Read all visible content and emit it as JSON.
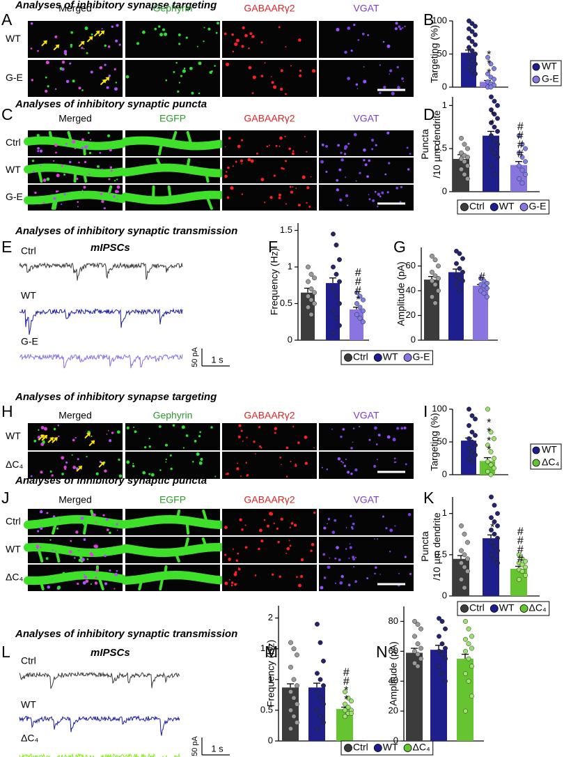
{
  "figure": {
    "titles": [
      "Analyses of inhibitory synapse targeting",
      "Analyses of inhibitory synaptic puncta",
      "Analyses of inhibitory synaptic transmission",
      "Analyses of inhibitory synapse targeting",
      "Analyses of inhibitory synaptic puncta",
      "Analyses of inhibitory synaptic transmission"
    ],
    "image_panels": [
      {
        "letter": "A",
        "columns": [
          "Merged",
          "Gephyrin",
          "GABAARγ2",
          "VGAT"
        ],
        "rows": [
          "WT",
          "G-E"
        ]
      },
      {
        "letter": "C",
        "columns": [
          "Merged",
          "EGFP",
          "GABAARγ2",
          "VGAT"
        ],
        "rows": [
          "Ctrl",
          "WT",
          "G-E"
        ]
      },
      {
        "letter": "H",
        "columns": [
          "Merged",
          "Gephyrin",
          "GABAARγ2",
          "VGAT"
        ],
        "rows": [
          "WT",
          "ΔC₄"
        ]
      },
      {
        "letter": "J",
        "columns": [
          "Merged",
          "EGFP",
          "GABAARγ2",
          "VGAT"
        ],
        "rows": [
          "Ctrl",
          "WT",
          "ΔC₄"
        ]
      }
    ],
    "trace_panels": [
      {
        "letter": "E",
        "title": "mIPSCs",
        "rows": [
          "Ctrl",
          "WT",
          "G-E"
        ],
        "scale_y": "50 pA",
        "scale_x": "1 s"
      },
      {
        "letter": "L",
        "title": "mIPSCs",
        "rows": [
          "Ctrl",
          "WT",
          "ΔC₄"
        ],
        "scale_y": "50 pA",
        "scale_x": "1 s"
      }
    ]
  },
  "chart_data": [
    {
      "type": "bar",
      "letter": "B",
      "ylabel": [
        "Targeting (%)"
      ],
      "categories": [
        "WT",
        "G-E"
      ],
      "values": [
        52,
        8
      ],
      "errors": [
        4,
        2
      ],
      "colors": [
        "#1e1e8c",
        "#8a74e0"
      ],
      "dot_colors": [
        "#23236e",
        "#7f7fe6"
      ],
      "points": [
        [
          100,
          96,
          92,
          88,
          84,
          79,
          74,
          69,
          64,
          60,
          55,
          50,
          45,
          40,
          35,
          30,
          25,
          20
        ],
        [
          45,
          35,
          28,
          20,
          15,
          12,
          8,
          5,
          3,
          0,
          0
        ]
      ],
      "annotations": [
        null,
        "***"
      ],
      "ylim": [
        0,
        100
      ],
      "yticks": [
        0,
        50,
        100
      ],
      "legend": "box"
    },
    {
      "type": "bar",
      "letter": "D",
      "ylabel": [
        "Puncta",
        "/10 µm dendrite"
      ],
      "categories": [
        "Ctrl",
        "WT",
        "G-E"
      ],
      "values": [
        0.38,
        0.65,
        0.31
      ],
      "errors": [
        0.05,
        0.05,
        0.04
      ],
      "colors": [
        "#3c3c3c",
        "#1e1e8c",
        "#8a74e0"
      ],
      "dot_colors": [
        "#9a9a9a",
        "#23236e",
        "#7f7fe6"
      ],
      "points": [
        [
          0.62,
          0.55,
          0.5,
          0.45,
          0.42,
          0.4,
          0.38,
          0.35,
          0.3,
          0.26,
          0.2,
          0.15
        ],
        [
          1.1,
          1.05,
          1.0,
          0.95,
          0.9,
          0.85,
          0.8,
          0.75,
          0.7,
          0.65,
          0.6,
          0.55,
          0.5,
          0.45,
          0.4,
          0.3,
          0.2
        ],
        [
          0.65,
          0.55,
          0.5,
          0.45,
          0.4,
          0.35,
          0.3,
          0.25,
          0.2,
          0.15,
          0.1
        ]
      ],
      "annotations": [
        null,
        "**",
        "####"
      ],
      "ylim": [
        0,
        1.1
      ],
      "yticks": [
        0,
        0.5,
        1
      ],
      "legend": "row"
    },
    {
      "type": "bar",
      "letter": "F",
      "ylabel": [
        "Frequency (Hz)"
      ],
      "categories": [
        "Ctrl",
        "WT",
        "G-E"
      ],
      "values": [
        0.65,
        0.78,
        0.42
      ],
      "errors": [
        0.06,
        0.07,
        0.03
      ],
      "colors": [
        "#3c3c3c",
        "#1e1e8c",
        "#8a74e0"
      ],
      "dot_colors": [
        "#9a9a9a",
        "#23236e",
        "#7f7fe6"
      ],
      "points": [
        [
          1.0,
          0.9,
          0.85,
          0.8,
          0.7,
          0.65,
          0.6,
          0.55,
          0.5,
          0.45,
          0.35
        ],
        [
          1.45,
          1.3,
          1.1,
          1.0,
          0.9,
          0.8,
          0.7,
          0.6,
          0.5,
          0.4,
          0.3,
          0.2,
          0.1
        ],
        [
          0.65,
          0.6,
          0.55,
          0.5,
          0.45,
          0.4,
          0.35,
          0.3,
          0.25
        ]
      ],
      "annotations": [
        null,
        null,
        "###*"
      ],
      "ylim": [
        0,
        1.6
      ],
      "yticks": [
        0,
        0.5,
        1,
        1.5
      ],
      "legend": "row"
    },
    {
      "type": "bar",
      "letter": "G",
      "ylabel": [
        "Amplitude (pA)"
      ],
      "categories": [
        "Ctrl",
        "WT",
        "G-E"
      ],
      "values": [
        49,
        55,
        44
      ],
      "errors": [
        2.5,
        2.5,
        1
      ],
      "colors": [
        "#3c3c3c",
        "#1e1e8c",
        "#8a74e0"
      ],
      "dot_colors": [
        "#9a9a9a",
        "#23236e",
        "#7f7fe6"
      ],
      "points": [
        [
          68,
          65,
          60,
          55,
          52,
          50,
          48,
          45,
          40,
          35,
          30
        ],
        [
          72,
          70,
          66,
          62,
          58,
          55,
          52,
          50,
          48,
          45,
          40
        ],
        [
          50,
          48,
          46,
          45,
          44,
          42,
          40,
          38,
          35
        ]
      ],
      "annotations": [
        null,
        null,
        "#"
      ],
      "ylim": [
        0,
        75
      ],
      "yticks": [
        0,
        20,
        40,
        60
      ]
    },
    {
      "type": "bar",
      "letter": "I",
      "ylabel": [
        "Targeting (%)"
      ],
      "categories": [
        "WT",
        "ΔC₄"
      ],
      "values": [
        52,
        21
      ],
      "errors": [
        4,
        5
      ],
      "colors": [
        "#1e1e8c",
        "#66c430"
      ],
      "dot_colors": [
        "#23236e",
        "#9be36a"
      ],
      "points": [
        [
          100,
          90,
          85,
          75,
          65,
          60,
          55,
          50,
          45,
          40,
          35,
          30,
          25,
          20
        ],
        [
          100,
          65,
          55,
          45,
          35,
          25,
          20,
          15,
          10,
          5,
          0
        ]
      ],
      "annotations": [
        null,
        "****"
      ],
      "ylim": [
        0,
        100
      ],
      "yticks": [
        0,
        50,
        100
      ],
      "legend": "box"
    },
    {
      "type": "bar",
      "letter": "K",
      "ylabel": [
        "Puncta",
        "/10 µm dendrite"
      ],
      "categories": [
        "Ctrl",
        "WT",
        "ΔC₄"
      ],
      "values": [
        0.45,
        0.7,
        0.33
      ],
      "errors": [
        0.04,
        0.04,
        0.03
      ],
      "colors": [
        "#3c3c3c",
        "#1e1e8c",
        "#66c430"
      ],
      "dot_colors": [
        "#9a9a9a",
        "#23236e",
        "#9be36a"
      ],
      "points": [
        [
          0.85,
          0.75,
          0.65,
          0.55,
          0.5,
          0.45,
          0.4,
          0.35,
          0.3,
          0.2,
          0.1
        ],
        [
          1.2,
          1.1,
          1.0,
          0.95,
          0.9,
          0.85,
          0.8,
          0.75,
          0.7,
          0.65,
          0.6,
          0.55,
          0.5,
          0.45,
          0.4
        ],
        [
          0.5,
          0.45,
          0.42,
          0.4,
          0.38,
          0.35,
          0.32,
          0.3,
          0.25,
          0.2
        ]
      ],
      "annotations": [
        null,
        "*",
        "####"
      ],
      "ylim": [
        0,
        1.2
      ],
      "yticks": [
        0,
        0.5,
        1
      ],
      "legend": "row"
    },
    {
      "type": "bar",
      "letter": "M",
      "ylabel": [
        "Frequency (Hz)"
      ],
      "categories": [
        "Ctrl",
        "WT",
        "ΔC₄"
      ],
      "values": [
        0.87,
        0.87,
        0.52
      ],
      "errors": [
        0.06,
        0.07,
        0.03
      ],
      "colors": [
        "#3c3c3c",
        "#1e1e8c",
        "#66c430"
      ],
      "dot_colors": [
        "#9a9a9a",
        "#23236e",
        "#9be36a"
      ],
      "points": [
        [
          1.6,
          1.5,
          1.4,
          1.2,
          1.0,
          0.9,
          0.8,
          0.7,
          0.6,
          0.5,
          0.4,
          0.3,
          0.2
        ],
        [
          1.9,
          1.6,
          1.3,
          1.1,
          1.0,
          0.9,
          0.8,
          0.7,
          0.6,
          0.5,
          0.4,
          0.3,
          0.2
        ],
        [
          0.8,
          0.7,
          0.65,
          0.6,
          0.55,
          0.5,
          0.5,
          0.45,
          0.45,
          0.4
        ]
      ],
      "annotations": [
        null,
        null,
        "##**"
      ],
      "ylim": [
        0,
        2.2
      ],
      "yticks": [
        0,
        0.5,
        1,
        1.5,
        2
      ],
      "legend": "row"
    },
    {
      "type": "bar",
      "letter": "N",
      "ylabel": [
        "Amplitude (pA)"
      ],
      "categories": [
        "Ctrl",
        "WT",
        "ΔC₄"
      ],
      "values": [
        59,
        61,
        55
      ],
      "errors": [
        3,
        3,
        3
      ],
      "colors": [
        "#3c3c3c",
        "#1e1e8c",
        "#66c430"
      ],
      "dot_colors": [
        "#9a9a9a",
        "#23236e",
        "#9be36a"
      ],
      "points": [
        [
          80,
          78,
          75,
          70,
          65,
          62,
          60,
          58,
          55,
          52,
          50
        ],
        [
          82,
          80,
          75,
          70,
          65,
          62,
          60,
          58,
          55,
          50,
          45,
          40
        ],
        [
          80,
          75,
          70,
          68,
          65,
          62,
          60,
          55,
          50,
          45,
          40,
          30,
          20
        ]
      ],
      "annotations": [
        null,
        null,
        null
      ],
      "ylim": [
        0,
        90
      ],
      "yticks": [
        0,
        20,
        40,
        60,
        80
      ]
    }
  ]
}
